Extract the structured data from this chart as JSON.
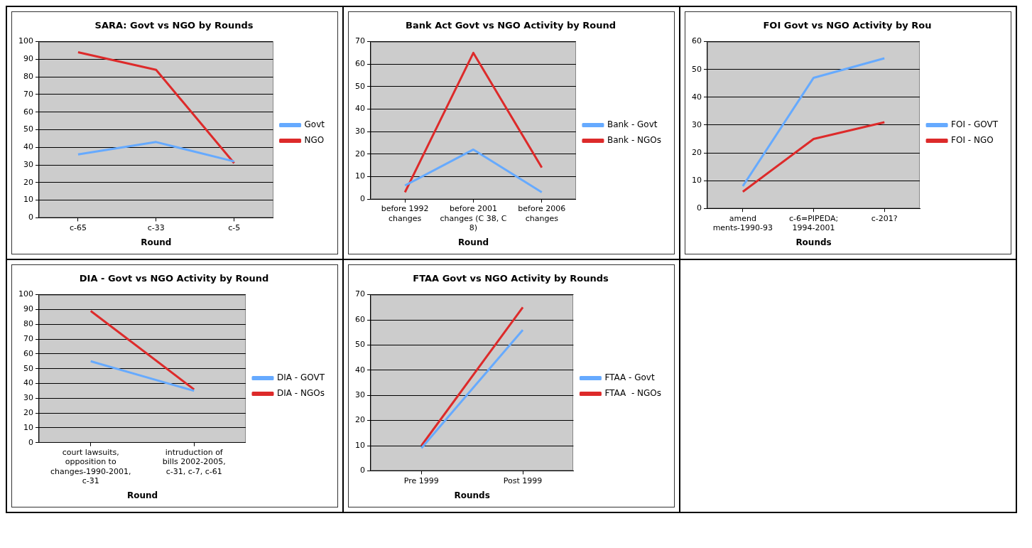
{
  "chart_data": [
    {
      "type": "line",
      "title": "SARA: Govt vs NGO by Rounds",
      "xlabel": "Round",
      "categories": [
        "c-65",
        "c-33",
        "c-5"
      ],
      "ylim": [
        0,
        100
      ],
      "yticks": [
        0,
        10,
        20,
        30,
        40,
        50,
        60,
        70,
        80,
        90,
        100
      ],
      "grid": "y",
      "legend": "right",
      "series": [
        {
          "name": "Govt",
          "color": "#66aaff",
          "values": [
            36,
            43,
            32
          ]
        },
        {
          "name": "NGO",
          "color": "#dd2a2a",
          "values": [
            94,
            84,
            31
          ]
        }
      ]
    },
    {
      "type": "line",
      "title": "Bank Act Govt vs NGO Activity by Round",
      "xlabel": "Round",
      "categories": [
        "before 1992 changes",
        "before 2001 changes (C 38, C 8)",
        "before 2006 changes"
      ],
      "ylim": [
        0,
        70
      ],
      "yticks": [
        0,
        10,
        20,
        30,
        40,
        50,
        60,
        70
      ],
      "grid": "y",
      "legend": "right",
      "series": [
        {
          "name": "Bank - Govt",
          "color": "#66aaff",
          "values": [
            6,
            22,
            3
          ]
        },
        {
          "name": "Bank - NGOs",
          "color": "#dd2a2a",
          "values": [
            3,
            65,
            14
          ]
        }
      ]
    },
    {
      "type": "line",
      "title": "FOI Govt vs NGO Activity by Rou",
      "xlabel": "Rounds",
      "categories": [
        "amend ments-1990-93",
        "c-6=PIPEDA; 1994-2001",
        "c-201?"
      ],
      "ylim": [
        0,
        60
      ],
      "yticks": [
        0,
        10,
        20,
        30,
        40,
        50,
        60
      ],
      "grid": "y",
      "legend": "right",
      "series": [
        {
          "name": "FOI - GOVT",
          "color": "#66aaff",
          "values": [
            8,
            47,
            54
          ]
        },
        {
          "name": "FOI - NGO",
          "color": "#dd2a2a",
          "values": [
            6,
            25,
            31
          ]
        }
      ]
    },
    {
      "type": "line",
      "title": "DIA - Govt vs NGO Activity by Round",
      "xlabel": "Round",
      "categories": [
        "court lawsuits, opposition to changes-1990-2001, c-31",
        "intruduction of bills 2002-2005, c-31, c-7, c-61"
      ],
      "ylim": [
        0,
        100
      ],
      "yticks": [
        0,
        10,
        20,
        30,
        40,
        50,
        60,
        70,
        80,
        90,
        100
      ],
      "grid": "y",
      "legend": "right",
      "series": [
        {
          "name": "DIA - GOVT",
          "color": "#66aaff",
          "values": [
            55,
            35
          ]
        },
        {
          "name": "DIA - NGOs",
          "color": "#dd2a2a",
          "values": [
            89,
            36
          ]
        }
      ]
    },
    {
      "type": "line",
      "title": "FTAA Govt vs NGO Activity by Rounds",
      "xlabel": "Rounds",
      "categories": [
        "Pre 1999",
        "Post 1999"
      ],
      "ylim": [
        0,
        70
      ],
      "yticks": [
        0,
        10,
        20,
        30,
        40,
        50,
        60,
        70
      ],
      "grid": "y",
      "legend": "right",
      "series": [
        {
          "name": "FTAA - Govt",
          "color": "#66aaff",
          "values": [
            9,
            56
          ]
        },
        {
          "name": "FTAA  - NGOs",
          "color": "#dd2a2a",
          "values": [
            10,
            65
          ]
        }
      ]
    }
  ]
}
